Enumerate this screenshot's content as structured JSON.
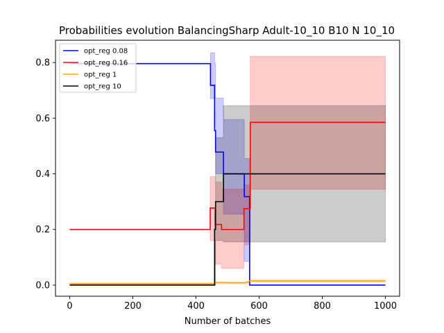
{
  "chart_data": {
    "type": "line",
    "title": "Probabilities evolution BalancingSharp Adult-10_10 B10 N 10_10",
    "xlabel": "Number of batches",
    "ylabel": "",
    "xlim": [
      -45,
      1045
    ],
    "ylim": [
      -0.04,
      0.88
    ],
    "xticks": [
      0,
      200,
      400,
      600,
      800,
      1000
    ],
    "yticks": [
      0.0,
      0.2,
      0.4,
      0.6,
      0.8
    ],
    "xtick_labels": [
      "0",
      "200",
      "400",
      "600",
      "800",
      "1000"
    ],
    "ytick_labels": [
      "0.0",
      "0.2",
      "0.4",
      "0.6",
      "0.8"
    ],
    "grid": false,
    "legend_position": "top-left",
    "series": [
      {
        "name": "opt_reg 0.08",
        "color": "#0000ff",
        "points": [
          [
            0,
            0.796
          ],
          [
            446,
            0.796
          ],
          [
            446,
            0.718
          ],
          [
            459,
            0.718
          ],
          [
            459,
            0.555
          ],
          [
            462,
            0.555
          ],
          [
            462,
            0.478
          ],
          [
            487,
            0.478
          ],
          [
            487,
            0.4
          ],
          [
            553,
            0.4
          ],
          [
            553,
            0.318
          ],
          [
            570,
            0.318
          ],
          [
            570,
            0.0
          ],
          [
            1000,
            0.0
          ]
        ],
        "band": [
          [
            446,
            0.67,
            0.835
          ],
          [
            459,
            0.62,
            0.8
          ],
          [
            462,
            0.4,
            0.672
          ],
          [
            487,
            0.255,
            0.595
          ],
          [
            553,
            0.085,
            0.455
          ],
          [
            570,
            0.0,
            0.0
          ],
          [
            1000,
            0.0,
            0.0
          ]
        ]
      },
      {
        "name": "opt_reg 0.16",
        "color": "#ff0000",
        "points": [
          [
            0,
            0.2
          ],
          [
            445,
            0.2
          ],
          [
            445,
            0.277
          ],
          [
            461,
            0.277
          ],
          [
            461,
            0.218
          ],
          [
            481,
            0.218
          ],
          [
            481,
            0.2
          ],
          [
            552,
            0.2
          ],
          [
            552,
            0.275
          ],
          [
            572,
            0.275
          ],
          [
            572,
            0.585
          ],
          [
            1000,
            0.585
          ]
        ],
        "band": [
          [
            445,
            0.16,
            0.39
          ],
          [
            461,
            0.075,
            0.37
          ],
          [
            481,
            0.06,
            0.345
          ],
          [
            552,
            0.145,
            0.36
          ],
          [
            572,
            0.345,
            0.822
          ],
          [
            1000,
            0.345,
            0.822
          ]
        ]
      },
      {
        "name": "opt_reg 1",
        "color": "#ffa500",
        "points": [
          [
            0,
            0.005
          ],
          [
            455,
            0.005
          ],
          [
            462,
            0.009
          ],
          [
            520,
            0.008
          ],
          [
            555,
            0.008
          ],
          [
            565,
            0.012
          ],
          [
            570,
            0.015
          ],
          [
            1000,
            0.015
          ]
        ],
        "band": [
          [
            0,
            0.002,
            0.008
          ],
          [
            455,
            0.002,
            0.008
          ],
          [
            462,
            0.004,
            0.012
          ],
          [
            555,
            0.004,
            0.012
          ],
          [
            570,
            0.01,
            0.02
          ],
          [
            1000,
            0.01,
            0.02
          ]
        ]
      },
      {
        "name": "opt_reg 10",
        "color": "#000000",
        "points": [
          [
            0,
            0.0
          ],
          [
            459,
            0.0
          ],
          [
            459,
            0.2
          ],
          [
            462,
            0.2
          ],
          [
            462,
            0.3
          ],
          [
            487,
            0.3
          ],
          [
            487,
            0.4
          ],
          [
            1000,
            0.4
          ]
        ],
        "band": [
          [
            459,
            0.0,
            0.26
          ],
          [
            462,
            0.16,
            0.53
          ],
          [
            487,
            0.155,
            0.645
          ],
          [
            1000,
            0.155,
            0.645
          ]
        ]
      }
    ]
  }
}
